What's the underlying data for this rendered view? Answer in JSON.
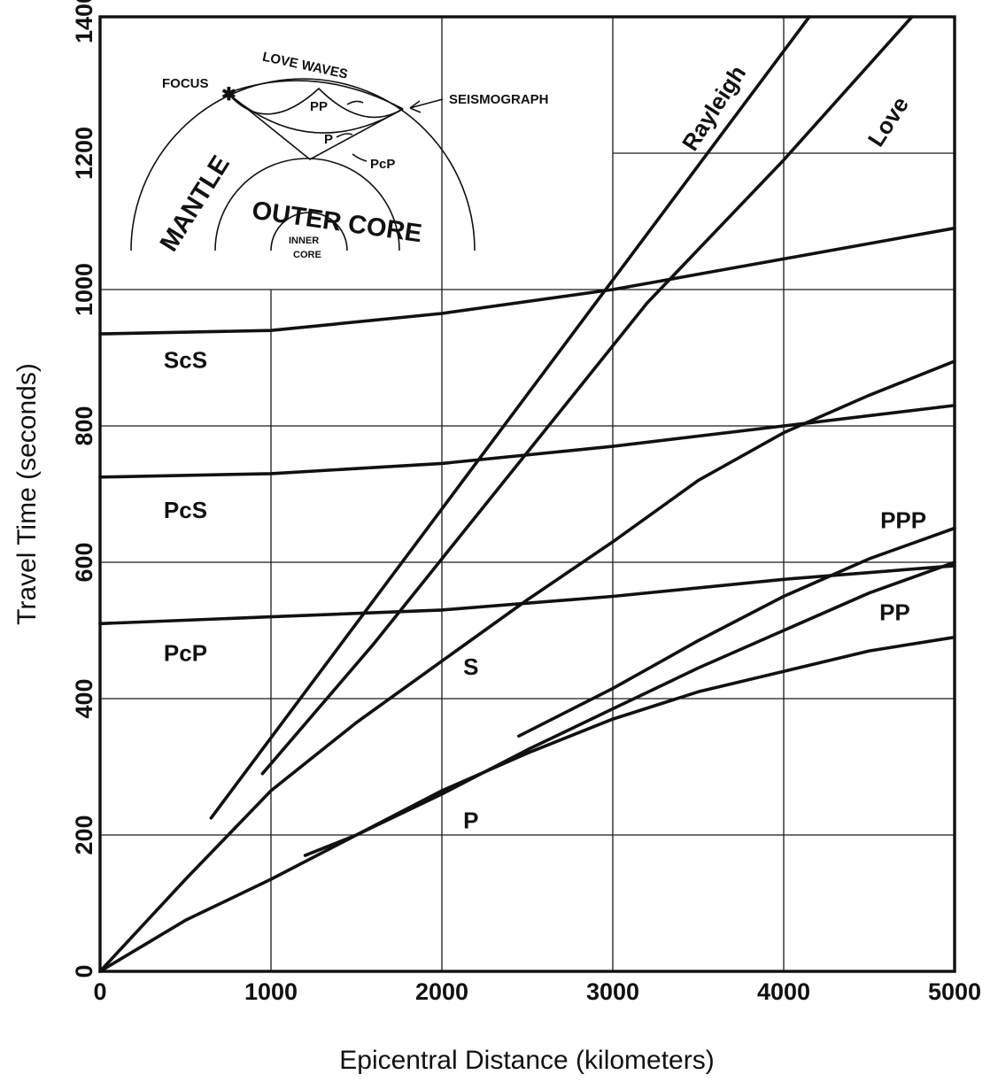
{
  "chart_data": {
    "type": "line",
    "title": "",
    "xlabel": "Epicentral Distance (kilometers)",
    "ylabel": "Travel Time (seconds)",
    "xlim": [
      0,
      5000
    ],
    "ylim": [
      0,
      1400
    ],
    "xticks": [
      0,
      1000,
      2000,
      3000,
      4000,
      5000
    ],
    "xtick_labels": [
      "0",
      "1000",
      "2000",
      "3000",
      "4000",
      "5000"
    ],
    "yticks": [
      0,
      200,
      400,
      600,
      800,
      1000,
      1200,
      1400
    ],
    "ytick_labels": [
      "0",
      "200",
      "400",
      "600",
      "800",
      "1000",
      "1200",
      "1400"
    ],
    "grid": true,
    "series": [
      {
        "name": "Rayleigh",
        "points": [
          [
            650,
            225
          ],
          [
            4150,
            1400
          ]
        ]
      },
      {
        "name": "Love",
        "points": [
          [
            950,
            290
          ],
          [
            1600,
            480
          ],
          [
            2400,
            730
          ],
          [
            3200,
            980
          ],
          [
            4000,
            1190
          ],
          [
            4750,
            1400
          ]
        ]
      },
      {
        "name": "ScS",
        "points": [
          [
            0,
            935
          ],
          [
            1000,
            940
          ],
          [
            2000,
            965
          ],
          [
            3000,
            1000
          ],
          [
            4000,
            1045
          ],
          [
            5000,
            1090
          ]
        ]
      },
      {
        "name": "PcS",
        "points": [
          [
            0,
            725
          ],
          [
            1000,
            730
          ],
          [
            2000,
            745
          ],
          [
            3000,
            770
          ],
          [
            4000,
            800
          ],
          [
            5000,
            830
          ]
        ]
      },
      {
        "name": "PcP",
        "points": [
          [
            0,
            510
          ],
          [
            1000,
            520
          ],
          [
            2000,
            530
          ],
          [
            3000,
            550
          ],
          [
            4000,
            575
          ],
          [
            5000,
            595
          ]
        ]
      },
      {
        "name": "S",
        "points": [
          [
            0,
            0
          ],
          [
            500,
            135
          ],
          [
            1000,
            265
          ],
          [
            1500,
            365
          ],
          [
            2000,
            455
          ],
          [
            2500,
            545
          ],
          [
            3000,
            630
          ],
          [
            3500,
            720
          ],
          [
            4000,
            790
          ],
          [
            4500,
            845
          ],
          [
            5000,
            895
          ]
        ]
      },
      {
        "name": "P",
        "points": [
          [
            0,
            0
          ],
          [
            500,
            75
          ],
          [
            1000,
            135
          ],
          [
            1500,
            200
          ],
          [
            2000,
            265
          ],
          [
            2500,
            320
          ],
          [
            3000,
            370
          ],
          [
            3500,
            410
          ],
          [
            4000,
            440
          ],
          [
            4500,
            470
          ],
          [
            5000,
            490
          ]
        ]
      },
      {
        "name": "PPP",
        "points": [
          [
            2450,
            345
          ],
          [
            3000,
            415
          ],
          [
            3500,
            485
          ],
          [
            4000,
            550
          ],
          [
            4500,
            605
          ],
          [
            5000,
            650
          ]
        ]
      },
      {
        "name": "PP",
        "points": [
          [
            1200,
            170
          ],
          [
            1500,
            200
          ],
          [
            2000,
            260
          ],
          [
            2500,
            325
          ],
          [
            3000,
            385
          ],
          [
            3500,
            445
          ],
          [
            4000,
            500
          ],
          [
            4500,
            555
          ],
          [
            5000,
            600
          ]
        ]
      }
    ],
    "series_labels": [
      {
        "text": "Rayleigh",
        "x": 3630,
        "y": 1260
      },
      {
        "text": "Love",
        "x": 4650,
        "y": 1240
      },
      {
        "text": "ScS",
        "x": 500,
        "y": 885
      },
      {
        "text": "PcS",
        "x": 500,
        "y": 665
      },
      {
        "text": "PcP",
        "x": 500,
        "y": 455
      },
      {
        "text": "S",
        "x": 2170,
        "y": 435
      },
      {
        "text": "P",
        "x": 2170,
        "y": 210
      },
      {
        "text": "PPP",
        "x": 4700,
        "y": 650
      },
      {
        "text": "PP",
        "x": 4650,
        "y": 515
      }
    ]
  },
  "inset": {
    "focus": "FOCUS",
    "love_waves": "LOVE WAVES",
    "seismograph": "SEISMOGRAPH",
    "pp": "PP",
    "p": "P",
    "pcp": "PcP",
    "mantle": "MANTLE",
    "outer_core": "OUTER CORE",
    "inner_core_1": "INNER",
    "inner_core_2": "CORE"
  }
}
